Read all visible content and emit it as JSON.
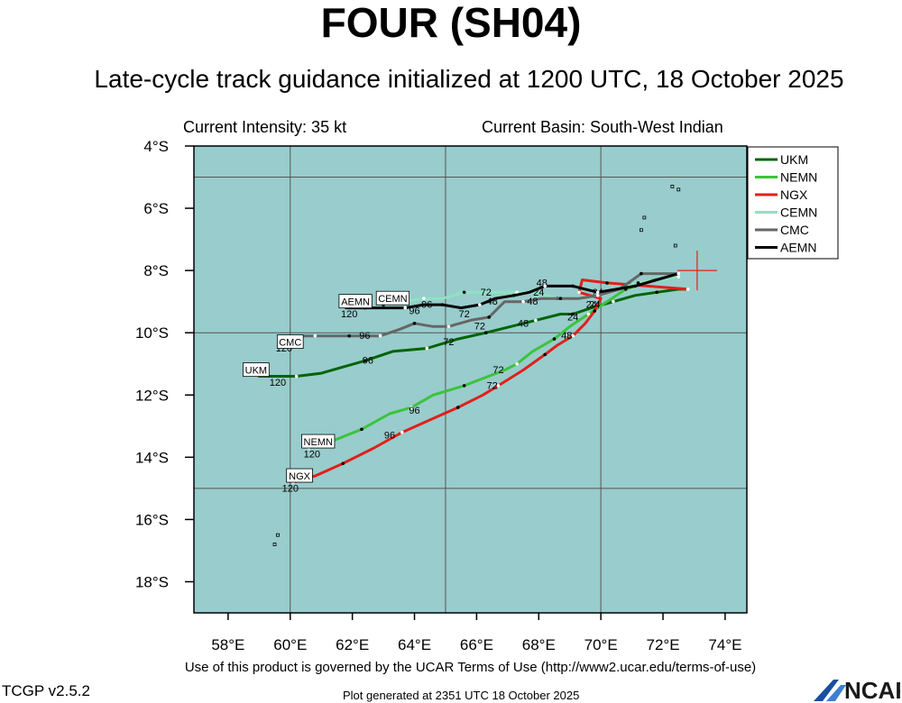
{
  "title": "FOUR (SH04)",
  "subtitle": "Late-cycle track guidance initialized at 1200 UTC, 18 October 2025",
  "info": {
    "intensity": "Current Intensity: 35 kt",
    "basin": "Current Basin: South-West Indian"
  },
  "footer": {
    "terms": "Use of this product is governed by the UCAR Terms of Use (http://www2.ucar.edu/terms-of-use)",
    "version": "TCGP v2.5.2",
    "generated": "Plot generated at 2351 UTC   18 October 2025",
    "logo_text": "NCAR"
  },
  "colors": {
    "ocean": "#99cccc",
    "grid": "#555555",
    "current_position": "#e0201a",
    "tick_label": "#000000"
  },
  "chart_data": {
    "type": "line",
    "title": "FOUR (SH04)",
    "xlabel": "",
    "ylabel": "",
    "xlim": [
      56.9,
      74.7
    ],
    "ylim": [
      -19.0,
      -4.0
    ],
    "grid": true,
    "legend_position": "top-right",
    "x_ticks": [
      {
        "value": 58,
        "label": "58°E"
      },
      {
        "value": 60,
        "label": "60°E"
      },
      {
        "value": 62,
        "label": "62°E"
      },
      {
        "value": 64,
        "label": "64°E"
      },
      {
        "value": 66,
        "label": "66°E"
      },
      {
        "value": 68,
        "label": "68°E"
      },
      {
        "value": 70,
        "label": "70°E"
      },
      {
        "value": 72,
        "label": "72°E"
      },
      {
        "value": 74,
        "label": "74°E"
      }
    ],
    "y_ticks": [
      {
        "value": -4,
        "label": "4°S"
      },
      {
        "value": -6,
        "label": "6°S"
      },
      {
        "value": -8,
        "label": "8°S"
      },
      {
        "value": -10,
        "label": "10°S"
      },
      {
        "value": -12,
        "label": "12°S"
      },
      {
        "value": -14,
        "label": "14°S"
      },
      {
        "value": -16,
        "label": "16°S"
      },
      {
        "value": -18,
        "label": "18°S"
      }
    ],
    "gridlines_x": [
      60,
      65,
      70
    ],
    "gridlines_y": [
      -5,
      -10,
      -15
    ],
    "current_position": {
      "lon": 73.1,
      "lat": -8.0
    },
    "series": [
      {
        "name": "UKM",
        "color": "#006400",
        "lon": [
          72.8,
          72.5,
          71.8,
          71.1,
          70.4,
          69.7,
          69.1,
          68.7,
          67.9,
          67.1,
          66.3,
          65.4,
          64.4,
          63.3,
          62.4,
          61.0,
          60.2,
          59.0
        ],
        "lat": [
          -8.6,
          -8.6,
          -8.7,
          -8.8,
          -9.0,
          -9.2,
          -9.4,
          -9.4,
          -9.6,
          -9.8,
          -10.0,
          -10.2,
          -10.5,
          -10.6,
          -10.9,
          -11.3,
          -11.4,
          -11.4
        ],
        "hour_labels": [
          {
            "text": "24",
            "lon": 69.1,
            "lat": -9.6
          },
          {
            "text": "48",
            "lon": 67.5,
            "lat": -9.8
          },
          {
            "text": "72",
            "lon": 65.1,
            "lat": -10.4
          },
          {
            "text": "96",
            "lon": 62.5,
            "lat": -11.0
          },
          {
            "text": "120",
            "lon": 59.6,
            "lat": -11.7
          }
        ],
        "end_label": "UKM",
        "end_lon": 58.9,
        "end_lat": -11.2
      },
      {
        "name": "NEMN",
        "color": "#3bc43b",
        "lon": [
          72.5,
          71.7,
          70.8,
          70.2,
          69.6,
          69.0,
          68.5,
          67.8,
          67.3,
          66.9,
          65.6,
          64.6,
          63.9,
          63.2,
          62.3,
          61.3,
          60.6
        ],
        "lat": [
          -8.2,
          -8.3,
          -8.6,
          -9.0,
          -9.4,
          -9.8,
          -10.2,
          -10.6,
          -11.0,
          -11.2,
          -11.7,
          -12.0,
          -12.4,
          -12.6,
          -13.1,
          -13.5,
          -13.7
        ],
        "hour_labels": [
          {
            "text": "24",
            "lon": 69.7,
            "lat": -9.2
          },
          {
            "text": "72",
            "lon": 66.7,
            "lat": -11.3
          },
          {
            "text": "96",
            "lon": 64.0,
            "lat": -12.6
          },
          {
            "text": "120",
            "lon": 60.7,
            "lat": -14.0
          }
        ],
        "end_label": "NEMN",
        "end_lon": 60.9,
        "end_lat": -13.5
      },
      {
        "name": "NGX",
        "color": "#e0201a",
        "lon": [
          72.8,
          71.5,
          70.2,
          69.4,
          69.3,
          70.0,
          69.8,
          69.5,
          69.1,
          68.6,
          68.2,
          67.5,
          66.7,
          66.2,
          65.4,
          64.5,
          63.6,
          62.7,
          61.7,
          60.8,
          60.1
        ],
        "lat": [
          -8.6,
          -8.5,
          -8.4,
          -8.3,
          -8.7,
          -8.9,
          -9.3,
          -9.7,
          -10.1,
          -10.4,
          -10.7,
          -11.2,
          -11.7,
          -12.0,
          -12.4,
          -12.8,
          -13.2,
          -13.7,
          -14.2,
          -14.6,
          -14.8
        ],
        "hour_labels": [
          {
            "text": "24",
            "lon": 69.9,
            "lat": -8.8
          },
          {
            "text": "48",
            "lon": 68.9,
            "lat": -10.2
          },
          {
            "text": "72",
            "lon": 66.5,
            "lat": -11.8
          },
          {
            "text": "96",
            "lon": 63.2,
            "lat": -13.4
          },
          {
            "text": "120",
            "lon": 60.0,
            "lat": -15.1
          }
        ],
        "end_label": "NGX",
        "end_lon": 60.3,
        "end_lat": -14.6
      },
      {
        "name": "CEMN",
        "color": "#8de3c0",
        "lon": [
          72.5,
          71.9,
          71.2,
          70.5,
          69.9,
          69.3,
          68.6,
          67.9,
          67.3,
          66.5,
          65.6,
          64.9,
          64.3,
          63.6,
          63.0
        ],
        "lat": [
          -8.2,
          -8.3,
          -8.4,
          -8.6,
          -8.8,
          -8.9,
          -8.9,
          -8.7,
          -8.7,
          -8.7,
          -8.7,
          -8.9,
          -8.9,
          -9.0,
          -9.1
        ],
        "hour_labels": [
          {
            "text": "48",
            "lon": 68.1,
            "lat": -8.5
          },
          {
            "text": "72",
            "lon": 66.3,
            "lat": -8.8
          },
          {
            "text": "96",
            "lon": 64.4,
            "lat": -9.2
          }
        ],
        "end_label": "CEMN",
        "end_lon": 63.3,
        "end_lat": -8.9
      },
      {
        "name": "CMC",
        "color": "#666666",
        "lon": [
          72.5,
          71.9,
          71.3,
          70.6,
          69.9,
          69.3,
          68.7,
          68.1,
          67.5,
          66.9,
          66.4,
          65.8,
          65.1,
          64.6,
          64.0,
          63.5,
          62.9,
          62.4,
          61.9,
          61.3,
          60.8,
          60.3
        ],
        "lat": [
          -8.1,
          -8.1,
          -8.1,
          -8.6,
          -8.8,
          -8.9,
          -8.9,
          -8.9,
          -9.0,
          -9.0,
          -9.5,
          -9.6,
          -9.8,
          -9.8,
          -9.7,
          -9.9,
          -10.1,
          -10.1,
          -10.1,
          -10.1,
          -10.1,
          -10.1
        ],
        "hour_labels": [
          {
            "text": "24",
            "lon": 69.8,
            "lat": -9.2
          },
          {
            "text": "48",
            "lon": 67.8,
            "lat": -9.1
          },
          {
            "text": "72",
            "lon": 66.1,
            "lat": -9.9
          },
          {
            "text": "96",
            "lon": 62.4,
            "lat": -10.2
          },
          {
            "text": "120",
            "lon": 59.8,
            "lat": -10.6
          }
        ],
        "end_label": "CMC",
        "end_lon": 60.0,
        "end_lat": -10.3
      },
      {
        "name": "AEMN",
        "color": "#000000",
        "lon": [
          72.5,
          71.8,
          71.1,
          70.5,
          69.9,
          69.5,
          69.1,
          68.6,
          68.2,
          67.7,
          67.2,
          66.6,
          66.1,
          65.5,
          64.9,
          64.3,
          63.7,
          63.0,
          62.4,
          61.8
        ],
        "lat": [
          -8.1,
          -8.3,
          -8.5,
          -8.6,
          -8.7,
          -8.6,
          -8.5,
          -8.5,
          -8.5,
          -8.7,
          -8.8,
          -8.9,
          -9.1,
          -9.2,
          -9.1,
          -9.1,
          -9.2,
          -9.2,
          -9.2,
          -9.2
        ],
        "hour_labels": [
          {
            "text": "24",
            "lon": 68.0,
            "lat": -8.8
          },
          {
            "text": "48",
            "lon": 66.5,
            "lat": -9.1
          },
          {
            "text": "72",
            "lon": 65.6,
            "lat": -9.5
          },
          {
            "text": "96",
            "lon": 64.0,
            "lat": -9.4
          },
          {
            "text": "120",
            "lon": 61.9,
            "lat": -9.5
          }
        ],
        "end_label": "AEMN",
        "end_lon": 62.1,
        "end_lat": -9.0
      }
    ],
    "islands": [
      {
        "lon": 72.3,
        "lat": -5.3
      },
      {
        "lon": 72.5,
        "lat": -5.4
      },
      {
        "lon": 71.4,
        "lat": -6.3
      },
      {
        "lon": 71.3,
        "lat": -6.7
      },
      {
        "lon": 72.4,
        "lat": -7.2
      },
      {
        "lon": 59.6,
        "lat": -16.5
      },
      {
        "lon": 59.5,
        "lat": -16.8
      }
    ]
  }
}
